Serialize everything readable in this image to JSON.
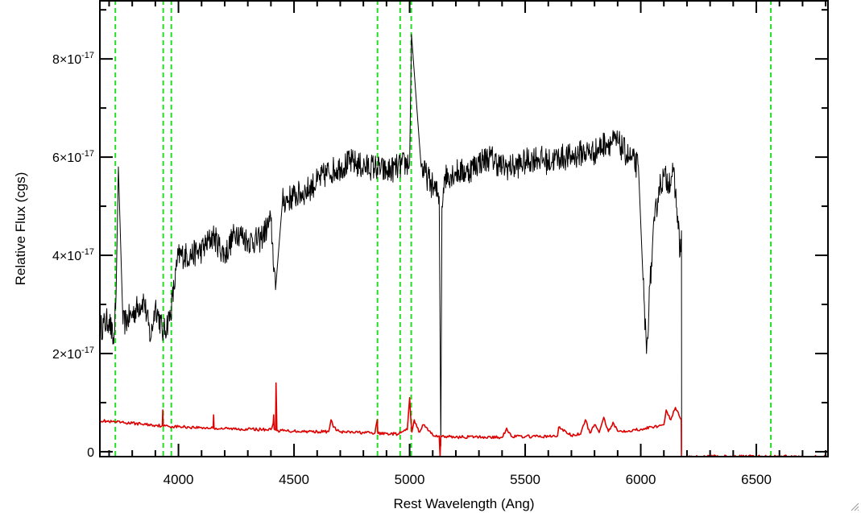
{
  "colors": {
    "background": "#ffffff",
    "spectrum": "#000000",
    "error": "#dd0000",
    "lines": "#22dd22",
    "axes": "#000000"
  },
  "chart_data": {
    "type": "line",
    "xlabel": "Rest Wavelength (Ang)",
    "ylabel": "Relative Flux (cgs)",
    "xlim": [
      3660,
      6810
    ],
    "ylim": [
      -1e-18,
      9.2e-17
    ],
    "x_ticks": [
      {
        "value": 4000,
        "label": "4000"
      },
      {
        "value": 4500,
        "label": "4500"
      },
      {
        "value": 5000,
        "label": "5000"
      },
      {
        "value": 5500,
        "label": "5500"
      },
      {
        "value": 6000,
        "label": "6000"
      },
      {
        "value": 6500,
        "label": "6500"
      }
    ],
    "y_ticks": [
      {
        "value": 0,
        "mantissa": "0",
        "exponent": ""
      },
      {
        "value": 2e-17,
        "mantissa": "2×10",
        "exponent": "-17"
      },
      {
        "value": 4e-17,
        "mantissa": "4×10",
        "exponent": "-17"
      },
      {
        "value": 6e-17,
        "mantissa": "6×10",
        "exponent": "-17"
      },
      {
        "value": 8e-17,
        "mantissa": "8×10",
        "exponent": "-17"
      }
    ],
    "reference_lines": [
      3727,
      3934,
      3969,
      4861,
      4959,
      5007,
      6563
    ],
    "series": [
      {
        "role": "spectrum",
        "x": [
          3660,
          3700,
          3720,
          3730,
          3740,
          3760,
          3800,
          3850,
          3880,
          3900,
          3935,
          3965,
          4000,
          4050,
          4100,
          4150,
          4200,
          4250,
          4300,
          4350,
          4400,
          4420,
          4450,
          4500,
          4550,
          4600,
          4650,
          4700,
          4750,
          4800,
          4850,
          4900,
          4950,
          5000,
          5008,
          5050,
          5100,
          5128,
          5135,
          5140,
          5150,
          5200,
          5250,
          5300,
          5350,
          5400,
          5450,
          5500,
          5550,
          5600,
          5650,
          5700,
          5750,
          5800,
          5850,
          5900,
          5950,
          5990,
          6010,
          6025,
          6040,
          6060,
          6080,
          6100,
          6120,
          6140,
          6160,
          6170,
          6176,
          6177
        ],
        "y": [
          2.5e-17,
          2.7e-17,
          2.2e-17,
          3.2e-17,
          5.8e-17,
          2.6e-17,
          2.8e-17,
          3.1e-17,
          2.3e-17,
          3e-17,
          2.4e-17,
          2.8e-17,
          4e-17,
          4e-17,
          4.1e-17,
          4.4e-17,
          4e-17,
          4.5e-17,
          4.3e-17,
          4.3e-17,
          4.7e-17,
          3.3e-17,
          5.1e-17,
          5.2e-17,
          5.3e-17,
          5.5e-17,
          5.7e-17,
          5.8e-17,
          5.9e-17,
          5.8e-17,
          5.8e-17,
          5.7e-17,
          5.8e-17,
          5.9e-17,
          8.5e-17,
          5.8e-17,
          5.4e-17,
          5.2e-17,
          1.2e-18,
          5e-17,
          5.6e-17,
          5.7e-17,
          5.7e-17,
          5.9e-17,
          6e-17,
          5.8e-17,
          5.8e-17,
          5.9e-17,
          6e-17,
          5.9e-17,
          6e-17,
          6e-17,
          6.1e-17,
          6.1e-17,
          6.3e-17,
          6.3e-17,
          6e-17,
          5.8e-17,
          3.5e-17,
          2e-17,
          3.4e-17,
          4.7e-17,
          5.4e-17,
          5.6e-17,
          5.5e-17,
          5.7e-17,
          4.8e-17,
          4e-17,
          4.5e-17,
          0
        ]
      },
      {
        "role": "error",
        "x": [
          3660,
          3700,
          3800,
          3900,
          3930,
          3932,
          3934,
          3936,
          4000,
          4100,
          4150,
          4152,
          4154,
          4200,
          4300,
          4400,
          4410,
          4412,
          4414,
          4420,
          4422,
          4424,
          4426,
          4500,
          4600,
          4650,
          4660,
          4670,
          4700,
          4800,
          4850,
          4860,
          4862,
          4864,
          4900,
          4950,
          4990,
          5000,
          5006,
          5010,
          5020,
          5040,
          5060,
          5100,
          5128,
          5132,
          5135,
          5140,
          5200,
          5300,
          5400,
          5420,
          5440,
          5500,
          5600,
          5640,
          5645,
          5700,
          5740,
          5760,
          5780,
          5800,
          5820,
          5840,
          5860,
          5880,
          5900,
          5950,
          6000,
          6050,
          6100,
          6110,
          6130,
          6150,
          6165,
          6175,
          6176,
          6177,
          6178,
          6300,
          6500,
          6810
        ],
        "y": [
          6.4e-18,
          6.1e-18,
          5.8e-18,
          5.4e-18,
          5.3e-18,
          8.5e-18,
          5.3e-18,
          5.2e-18,
          5.1e-18,
          4.9e-18,
          4.8e-18,
          7.5e-18,
          4.8e-18,
          4.7e-18,
          4.6e-18,
          4.5e-18,
          5.8e-18,
          7.5e-18,
          4.6e-18,
          4.4e-18,
          1.4e-17,
          9e-18,
          4.3e-18,
          4.2e-18,
          4.1e-18,
          4.1e-18,
          6.5e-18,
          5e-18,
          4e-18,
          3.9e-18,
          3.8e-18,
          6.5e-18,
          3.8e-18,
          3.7e-18,
          3.7e-18,
          3.6e-18,
          4.5e-18,
          1.1e-17,
          6e-18,
          4e-18,
          6.5e-18,
          4e-18,
          5.5e-18,
          3.4e-18,
          3.2e-18,
          -1e-18,
          3.2e-18,
          3.1e-18,
          3e-18,
          3e-18,
          2.9e-18,
          4.8e-18,
          3.1e-18,
          3.1e-18,
          3.1e-18,
          3.2e-18,
          5e-18,
          3.3e-18,
          3.6e-18,
          6.5e-18,
          3.8e-18,
          5.5e-18,
          3.9e-18,
          7e-18,
          4.1e-18,
          6e-18,
          4.2e-18,
          4.3e-18,
          4.6e-18,
          5e-18,
          5.5e-18,
          8.5e-18,
          6.5e-18,
          9e-18,
          7.5e-18,
          6.5e-18,
          -1e-18,
          -1e-18,
          -1e-18,
          -1e-18,
          -1e-18,
          -1e-18
        ]
      }
    ]
  }
}
